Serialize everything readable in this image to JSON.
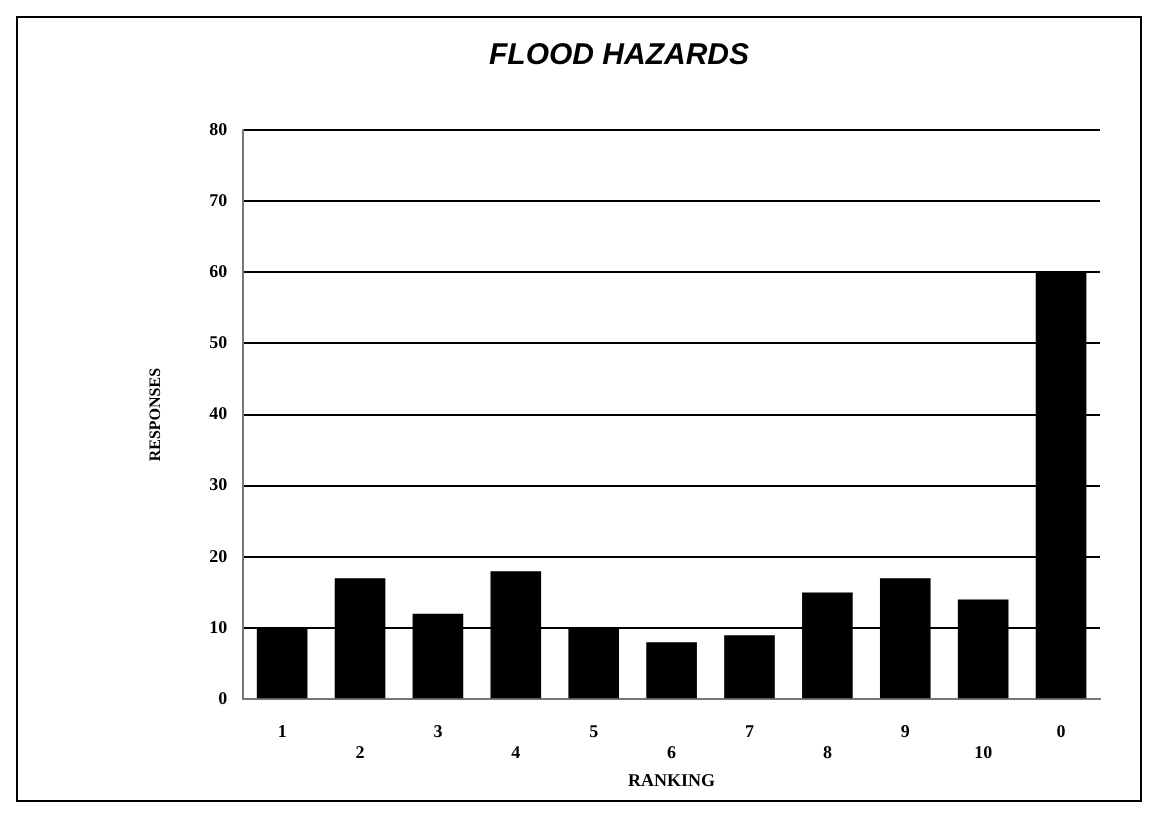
{
  "chart_data": {
    "type": "bar",
    "title": "FLOOD HAZARDS",
    "xlabel": "RANKING",
    "ylabel": "RESPONSES",
    "categories": [
      "1",
      "2",
      "3",
      "4",
      "5",
      "6",
      "7",
      "8",
      "9",
      "10",
      "0"
    ],
    "values": [
      10,
      17,
      12,
      18,
      10,
      8,
      9,
      15,
      17,
      14,
      60
    ],
    "color": "#000000",
    "ylim": [
      0,
      80
    ],
    "yticks": [
      0,
      10,
      20,
      30,
      40,
      50,
      60,
      70,
      80
    ],
    "grid": "y"
  }
}
